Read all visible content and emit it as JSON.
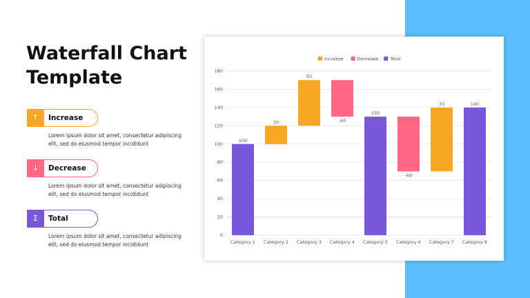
{
  "slide": {
    "title": "Waterfall Chart Template",
    "items": [
      {
        "icon": "↑",
        "label": "Increase",
        "description": "Lorem ipsum dolor sit amet, consectetur adipiscing elit, sed do eiusmod tempor incididunt",
        "color": "#f5a623"
      },
      {
        "icon": "↓",
        "label": "Decrease",
        "description": "Lorem ipsum dolor sit amet, consectetur adipiscing elit, sed do eiusmod tempor incididunt",
        "color": "#ff6584"
      },
      {
        "icon": "Σ",
        "label": "Total",
        "description": "Lorem ipsum dolor sit amet, consectetur adipiscing elit, sed do eiusmod tempor incididunt",
        "color": "#7759d9"
      }
    ]
  },
  "chart_data": {
    "type": "waterfall",
    "categories": [
      "Category 1",
      "Category 2",
      "Category 3",
      "Category 4",
      "Category 5",
      "Category 6",
      "Category 7",
      "Category 8"
    ],
    "series": [
      {
        "name": "Increase",
        "color": "#f5a623",
        "values": [
          null,
          20,
          50,
          null,
          null,
          null,
          70,
          null
        ]
      },
      {
        "name": "Decrease",
        "color": "#ff6584",
        "values": [
          null,
          null,
          null,
          -40,
          null,
          -60,
          null,
          null
        ]
      },
      {
        "name": "Total",
        "color": "#7759d9",
        "values": [
          100,
          null,
          null,
          null,
          130,
          null,
          null,
          140
        ]
      }
    ],
    "ylim": [
      0,
      180
    ],
    "yticks": [
      0,
      20,
      40,
      60,
      80,
      100,
      120,
      140,
      160,
      180
    ],
    "grid": true,
    "legend": "top"
  }
}
